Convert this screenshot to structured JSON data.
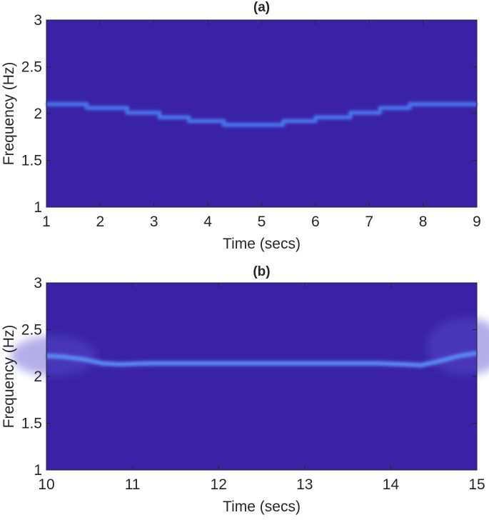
{
  "chart_data": [
    {
      "type": "heatmap",
      "title": "(a)",
      "xlabel": "Time (secs)",
      "ylabel": "Frequency (Hz)",
      "xlim": [
        1,
        9
      ],
      "ylim": [
        1,
        3
      ],
      "xticks": [
        "1",
        "2",
        "3",
        "4",
        "5",
        "6",
        "7",
        "8",
        "9"
      ],
      "yticks": [
        "1",
        "1.5",
        "2",
        "2.5",
        "3"
      ],
      "background_color": "#3a22a6",
      "ridge_color": "#4a78ee",
      "ridge": {
        "name": "frequency ridge",
        "x": [
          1.0,
          1.75,
          1.75,
          2.5,
          2.5,
          3.1,
          3.1,
          3.65,
          3.65,
          4.3,
          4.3,
          5.4,
          5.4,
          6.0,
          6.0,
          6.65,
          6.65,
          7.2,
          7.2,
          7.75,
          7.75,
          8.35,
          8.35,
          9.0
        ],
        "y": [
          2.1,
          2.1,
          2.06,
          2.06,
          2.01,
          2.01,
          1.96,
          1.96,
          1.92,
          1.92,
          1.88,
          1.88,
          1.92,
          1.92,
          1.96,
          1.96,
          2.01,
          2.01,
          2.06,
          2.06,
          2.1,
          2.1,
          2.1,
          2.1
        ]
      }
    },
    {
      "type": "heatmap",
      "title": "(b)",
      "xlabel": "Time (secs)",
      "ylabel": "Frequency (Hz)",
      "xlim": [
        10,
        15
      ],
      "ylim": [
        1,
        3
      ],
      "xticks": [
        "10",
        "11",
        "12",
        "13",
        "14",
        "15"
      ],
      "yticks": [
        "1",
        "1.5",
        "2",
        "2.5",
        "3"
      ],
      "background_color": "#3a22a6",
      "ridge_color": "#5c8cf2",
      "ridge": {
        "name": "frequency ridge",
        "x": [
          10.0,
          10.2,
          10.45,
          10.65,
          10.85,
          11.2,
          12.0,
          13.0,
          13.85,
          14.15,
          14.35,
          14.55,
          14.8,
          15.0
        ],
        "y": [
          2.22,
          2.21,
          2.18,
          2.14,
          2.13,
          2.14,
          2.14,
          2.14,
          2.14,
          2.13,
          2.12,
          2.16,
          2.22,
          2.25
        ]
      }
    }
  ]
}
